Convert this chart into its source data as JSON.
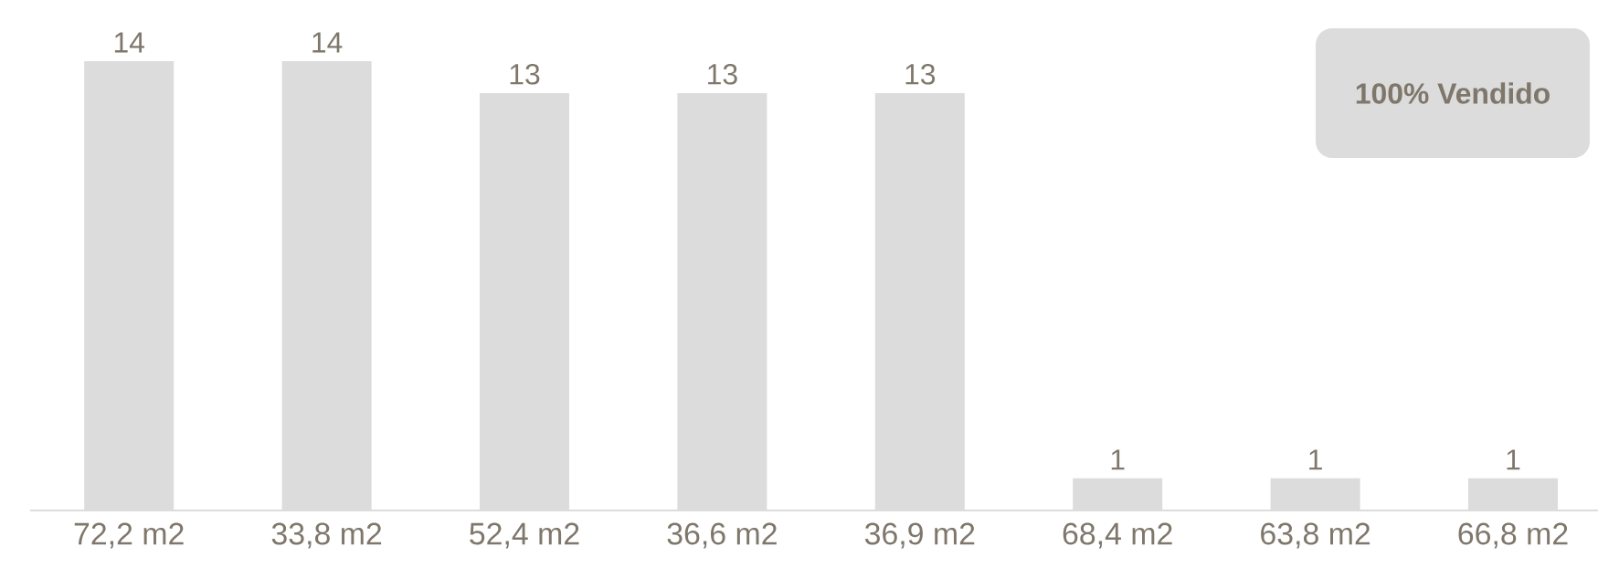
{
  "chart_data": {
    "type": "bar",
    "categories": [
      "72,2 m2",
      "33,8 m2",
      "52,4 m2",
      "36,6 m2",
      "36,9 m2",
      "68,4 m2",
      "63,8 m2",
      "66,8 m2"
    ],
    "values": [
      14,
      14,
      13,
      13,
      13,
      1,
      1,
      1
    ],
    "color": "#dcdcdc",
    "data_labels": true,
    "annotations": [
      "**100% Vendido**"
    ]
  }
}
